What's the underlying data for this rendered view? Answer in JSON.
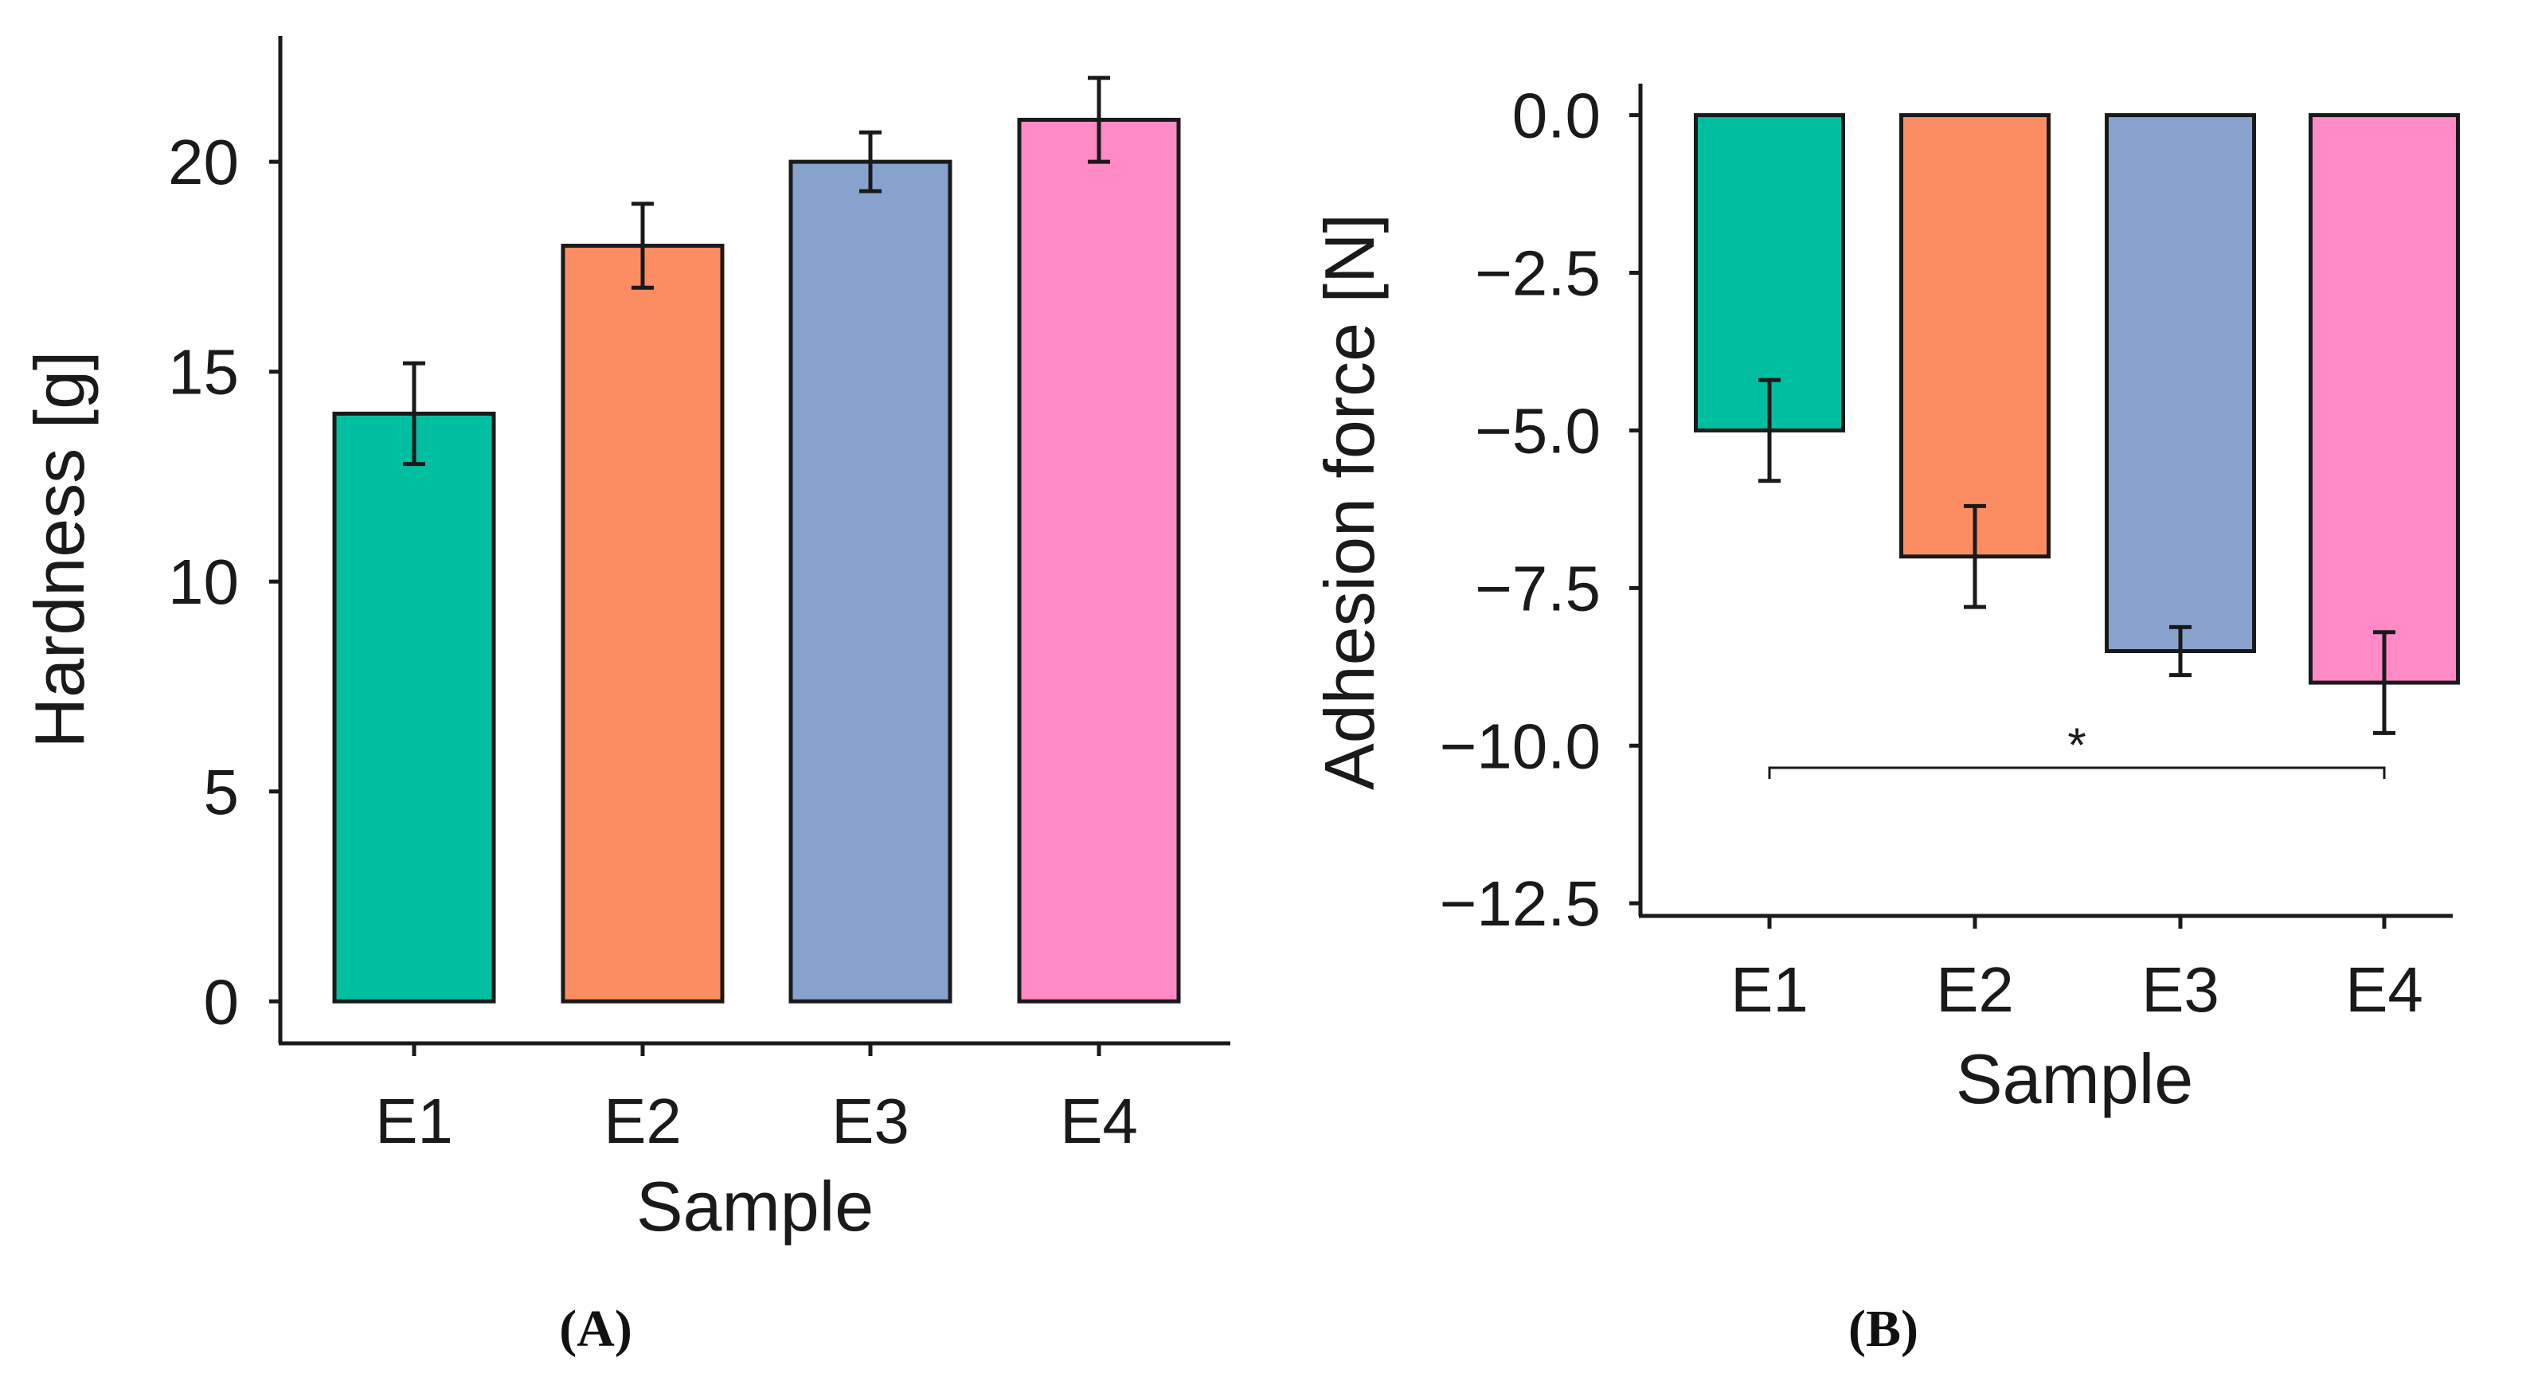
{
  "chart_data": [
    {
      "type": "bar",
      "panel_label": "(A)",
      "categories": [
        "E1",
        "E2",
        "E3",
        "E4"
      ],
      "values": [
        14,
        18,
        20,
        21
      ],
      "errors": [
        1.2,
        1.0,
        0.7,
        1.0
      ],
      "colors": [
        "#00BFA0",
        "#FC8D62",
        "#87A3CD",
        "#FF8AC6"
      ],
      "xlabel": "Sample",
      "ylabel": "Hardness [g]",
      "ylim": [
        -1,
        23
      ],
      "yticks": [
        0,
        5,
        10,
        15,
        20
      ],
      "ytick_labels": [
        "0",
        "5",
        "10",
        "15",
        "20"
      ],
      "grid": false
    },
    {
      "type": "bar",
      "panel_label": "(B)",
      "categories": [
        "E1",
        "E2",
        "E3",
        "E4"
      ],
      "values": [
        -5.0,
        -7.0,
        -8.5,
        -9.0
      ],
      "errors": [
        0.8,
        0.8,
        0.38,
        0.8
      ],
      "colors": [
        "#00BFA0",
        "#FC8D62",
        "#87A3CD",
        "#FF8AC6"
      ],
      "xlabel": "Sample",
      "ylabel": "Adhesion force [N]",
      "ylim": [
        -12.7,
        0.5
      ],
      "yticks": [
        0.0,
        -2.5,
        -5.0,
        -7.5,
        -10.0,
        -12.5
      ],
      "ytick_labels": [
        "0.0",
        "−2.5",
        "−5.0",
        "−7.5",
        "−10.0",
        "−12.5"
      ],
      "grid": false,
      "significance": {
        "from": "E1",
        "to": "E4",
        "y": -10.35,
        "label": "*"
      }
    }
  ]
}
